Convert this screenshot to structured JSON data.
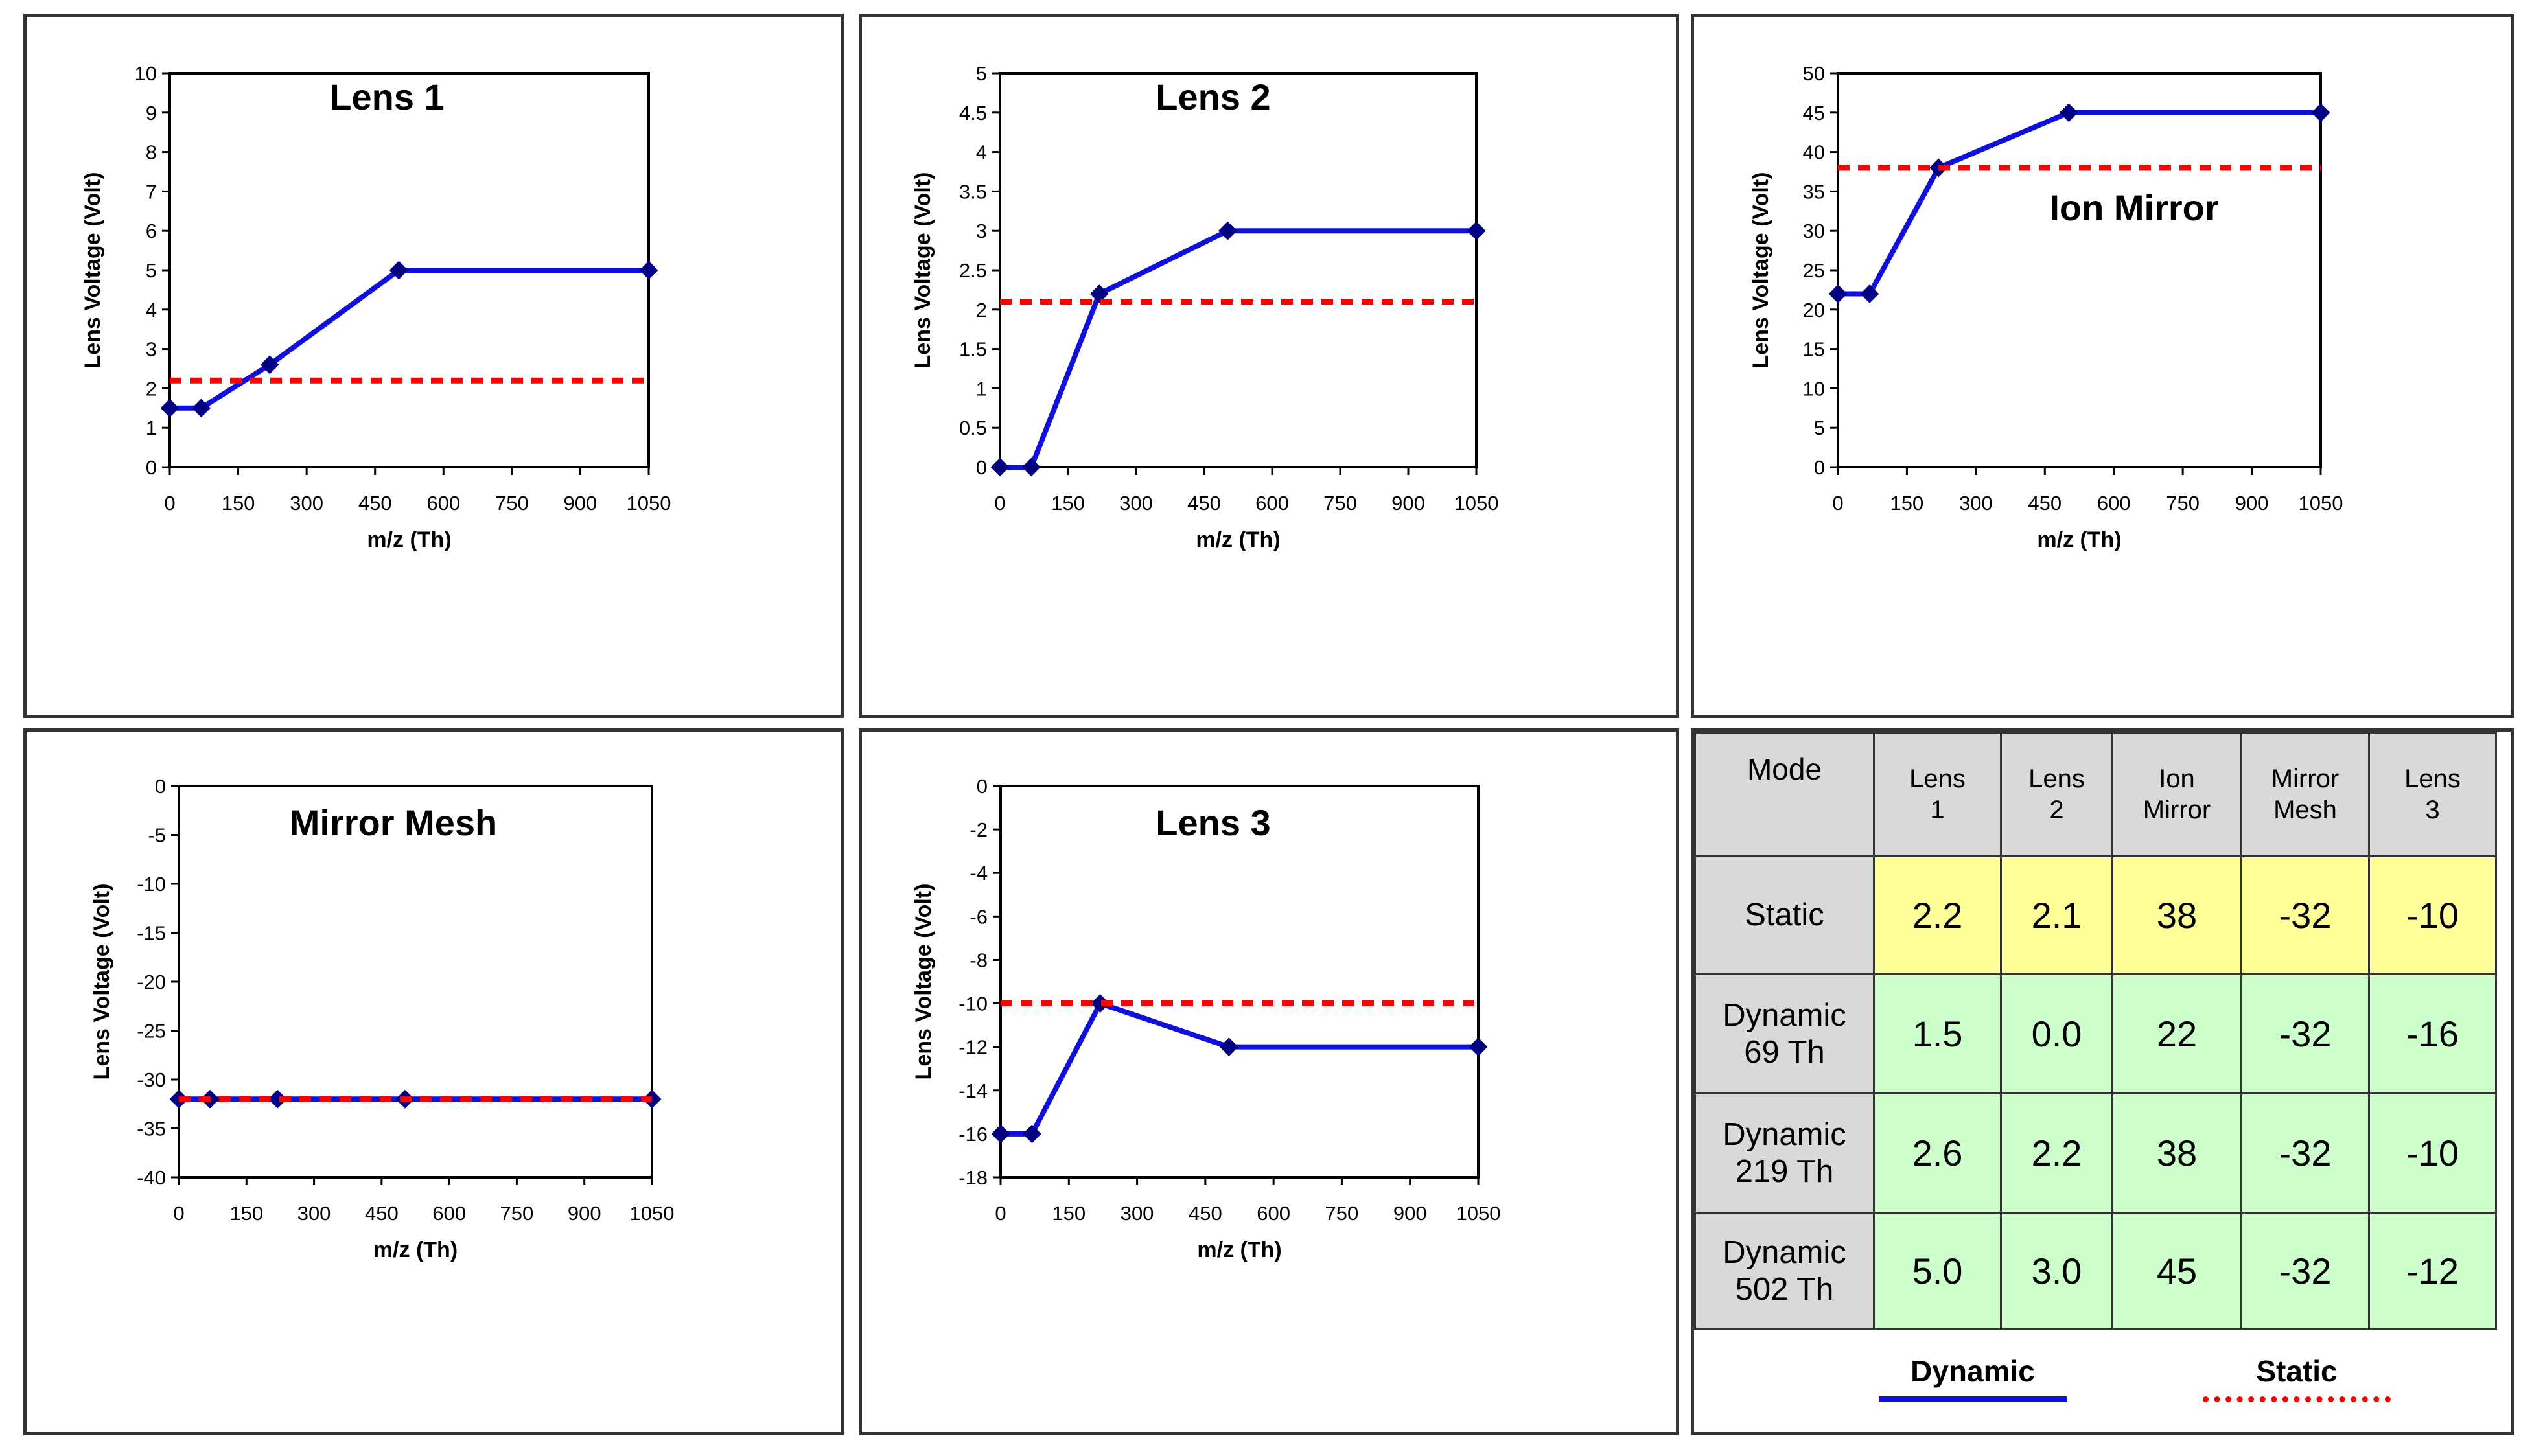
{
  "colors": {
    "dynamic": "#1010dd",
    "marker": "#000080",
    "static": "#ff0000",
    "static_row": "#ffff99",
    "dynamic_row": "#ccffcc",
    "header_bg": "#d9d9d9"
  },
  "chart_data": [
    {
      "type": "line",
      "title": "Lens 1",
      "xlabel": "m/z (Th)",
      "ylabel": "Lens Voltage (Volt)",
      "xlim": [
        0,
        1050
      ],
      "ylim": [
        0,
        10
      ],
      "xticks": [
        "0",
        "150",
        "300",
        "450",
        "600",
        "750",
        "900",
        "1050"
      ],
      "yticks": [
        "0",
        "1",
        "2",
        "3",
        "4",
        "5",
        "6",
        "7",
        "8",
        "9",
        "10"
      ],
      "grid": false,
      "series": [
        {
          "name": "Dynamic",
          "x": [
            0,
            69,
            219,
            502,
            1050
          ],
          "y": [
            1.5,
            1.5,
            2.6,
            5.0,
            5.0
          ]
        },
        {
          "name": "Static",
          "x": [
            0,
            1050
          ],
          "y": [
            2.2,
            2.2
          ]
        }
      ]
    },
    {
      "type": "line",
      "title": "Lens 2",
      "xlabel": "m/z (Th)",
      "ylabel": "Lens Voltage (Volt)",
      "xlim": [
        0,
        1050
      ],
      "ylim": [
        0,
        5
      ],
      "xticks": [
        "0",
        "150",
        "300",
        "450",
        "600",
        "750",
        "900",
        "1050"
      ],
      "yticks": [
        "0",
        "0.5",
        "1",
        "1.5",
        "2",
        "2.5",
        "3",
        "3.5",
        "4",
        "4.5",
        "5"
      ],
      "grid": false,
      "series": [
        {
          "name": "Dynamic",
          "x": [
            0,
            69,
            219,
            502,
            1050
          ],
          "y": [
            0.0,
            0.0,
            2.2,
            3.0,
            3.0
          ]
        },
        {
          "name": "Static",
          "x": [
            0,
            1050
          ],
          "y": [
            2.1,
            2.1
          ]
        }
      ]
    },
    {
      "type": "line",
      "title": "Ion Mirror",
      "xlabel": "m/z (Th)",
      "ylabel": "Lens Voltage (Volt)",
      "xlim": [
        0,
        1050
      ],
      "ylim": [
        0,
        50
      ],
      "xticks": [
        "0",
        "150",
        "300",
        "450",
        "600",
        "750",
        "900",
        "1050"
      ],
      "yticks": [
        "0",
        "5",
        "10",
        "15",
        "20",
        "25",
        "30",
        "35",
        "40",
        "45",
        "50"
      ],
      "grid": false,
      "series": [
        {
          "name": "Dynamic",
          "x": [
            0,
            69,
            219,
            502,
            1050
          ],
          "y": [
            22,
            22,
            38,
            45,
            45
          ]
        },
        {
          "name": "Static",
          "x": [
            0,
            1050
          ],
          "y": [
            38,
            38
          ]
        }
      ]
    },
    {
      "type": "line",
      "title": "Mirror Mesh",
      "xlabel": "m/z (Th)",
      "ylabel": "Lens Voltage (Volt)",
      "xlim": [
        0,
        1050
      ],
      "ylim": [
        -40,
        0
      ],
      "xticks": [
        "0",
        "150",
        "300",
        "450",
        "600",
        "750",
        "900",
        "1050"
      ],
      "yticks": [
        "-40",
        "-35",
        "-30",
        "-25",
        "-20",
        "-15",
        "-10",
        "-5",
        "0"
      ],
      "grid": false,
      "series": [
        {
          "name": "Dynamic",
          "x": [
            0,
            69,
            219,
            502,
            1050
          ],
          "y": [
            -32,
            -32,
            -32,
            -32,
            -32
          ]
        },
        {
          "name": "Static",
          "x": [
            0,
            1050
          ],
          "y": [
            -32,
            -32
          ]
        }
      ]
    },
    {
      "type": "line",
      "title": "Lens 3",
      "xlabel": "m/z (Th)",
      "ylabel": "Lens Voltage (Volt)",
      "xlim": [
        0,
        1050
      ],
      "ylim": [
        -18,
        0
      ],
      "xticks": [
        "0",
        "150",
        "300",
        "450",
        "600",
        "750",
        "900",
        "1050"
      ],
      "yticks": [
        "-18",
        "-16",
        "-14",
        "-12",
        "-10",
        "-8",
        "-6",
        "-4",
        "-2",
        "0"
      ],
      "grid": false,
      "series": [
        {
          "name": "Dynamic",
          "x": [
            0,
            69,
            219,
            502,
            1050
          ],
          "y": [
            -16,
            -16,
            -10,
            -12,
            -12
          ]
        },
        {
          "name": "Static",
          "x": [
            0,
            1050
          ],
          "y": [
            -10,
            -10
          ]
        }
      ]
    }
  ],
  "table": {
    "headers": [
      "Mode",
      "Lens\n1",
      "Lens\n2",
      "Ion\nMirror",
      "Mirror\nMesh",
      "Lens\n3"
    ],
    "rows": [
      {
        "mode": "Static",
        "kind": "static",
        "values": [
          "2.2",
          "2.1",
          "38",
          "-32",
          "-10"
        ]
      },
      {
        "mode": "Dynamic\n69 Th",
        "kind": "dynamic",
        "values": [
          "1.5",
          "0.0",
          "22",
          "-32",
          "-16"
        ]
      },
      {
        "mode": "Dynamic\n219 Th",
        "kind": "dynamic",
        "values": [
          "2.6",
          "2.2",
          "38",
          "-32",
          "-10"
        ]
      },
      {
        "mode": "Dynamic\n502 Th",
        "kind": "dynamic",
        "values": [
          "5.0",
          "3.0",
          "45",
          "-32",
          "-12"
        ]
      }
    ]
  },
  "legend": {
    "dynamic_label": "Dynamic",
    "static_label": "Static"
  }
}
